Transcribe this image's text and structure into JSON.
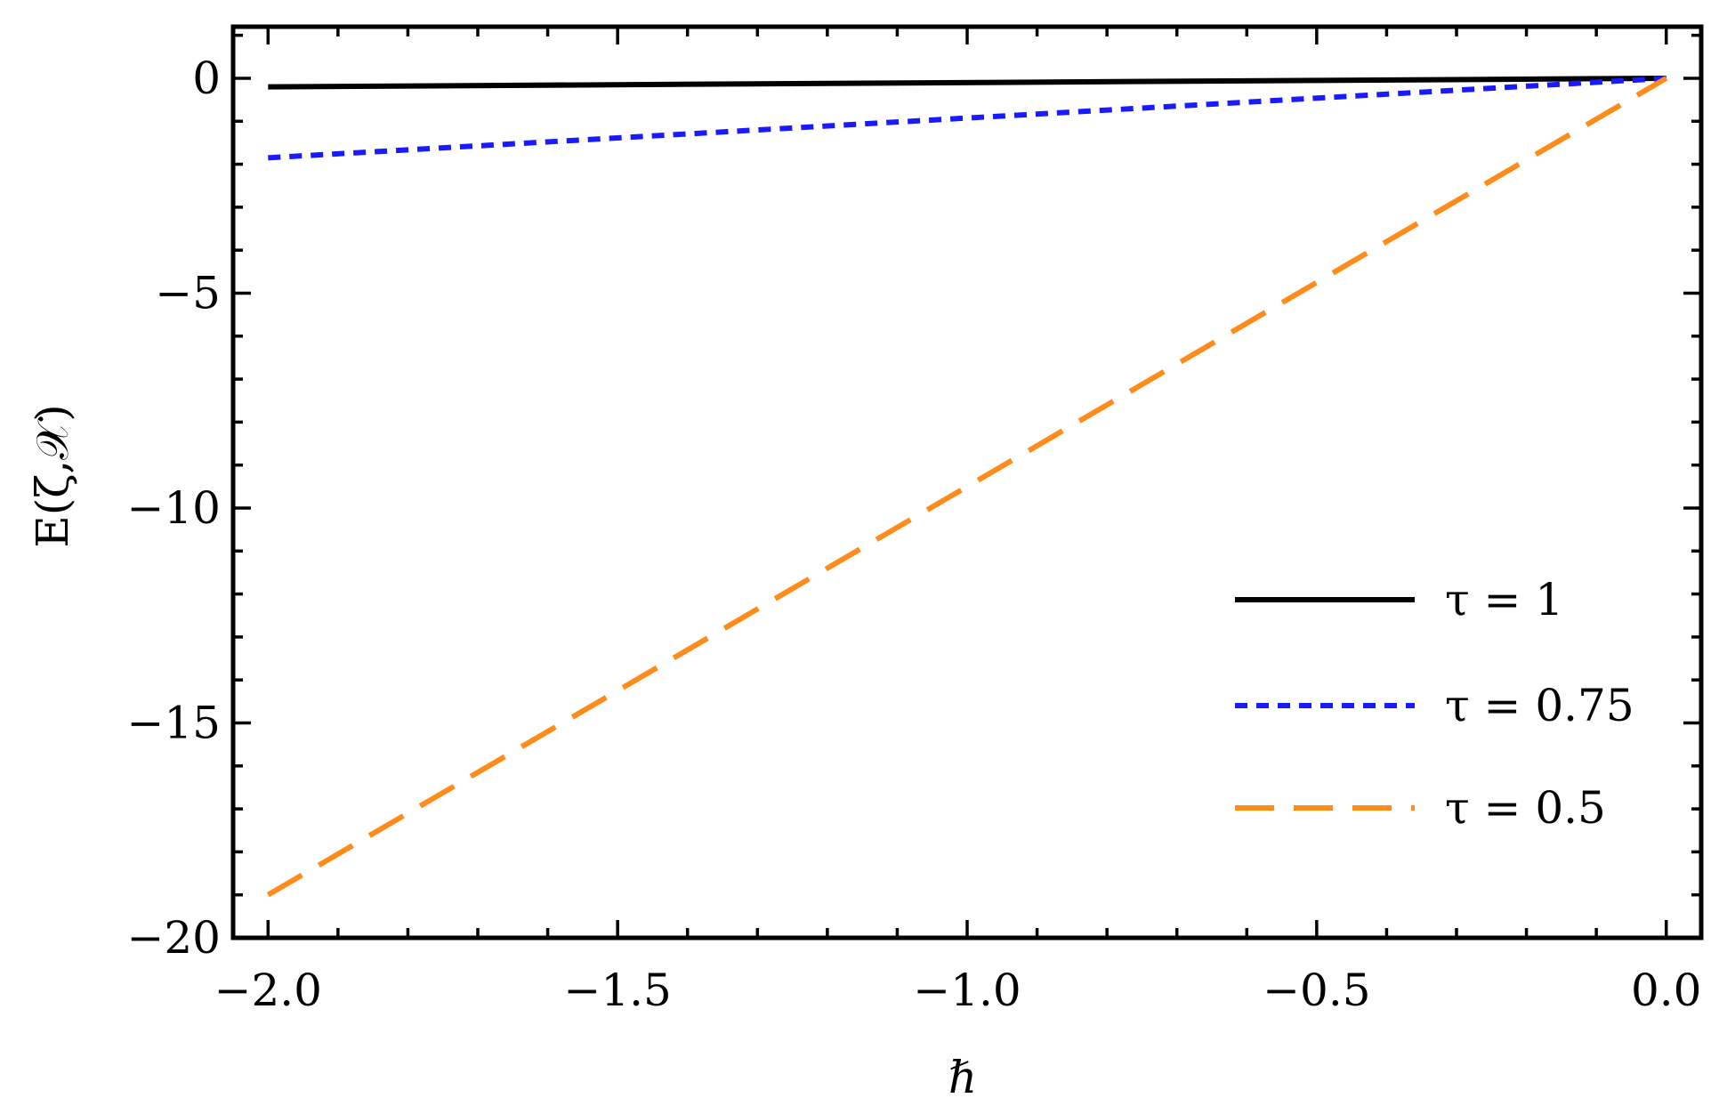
{
  "chart_data": {
    "type": "line",
    "xlabel": "ℏ",
    "ylabel": "E(ζ,𝒳)",
    "xlim": [
      -2.05,
      0.05
    ],
    "ylim": [
      -20,
      1.2
    ],
    "x_ticks": [
      -2.0,
      -1.5,
      -1.0,
      -0.5,
      0.0
    ],
    "x_tick_labels": [
      "−2.0",
      "−1.5",
      "−1.0",
      "−0.5",
      "0.0"
    ],
    "y_ticks": [
      0,
      -5,
      -10,
      -15,
      -20
    ],
    "y_tick_labels": [
      "0",
      "−5",
      "−10",
      "−15",
      "−20"
    ],
    "grid": false,
    "legend_position": "right",
    "series": [
      {
        "name": "τ = 1",
        "color": "#000000",
        "dash": "solid",
        "x": [
          -2.0,
          0.0
        ],
        "y": [
          -0.2,
          0.0
        ]
      },
      {
        "name": "τ = 0.75",
        "color": "#1a1aff",
        "dash": "short-dash",
        "x": [
          -2.0,
          0.0
        ],
        "y": [
          -1.85,
          0.0
        ]
      },
      {
        "name": "τ = 0.5",
        "color": "#ff8c1a",
        "dash": "long-dash",
        "x": [
          -2.0,
          0.0
        ],
        "y": [
          -19.0,
          0.0
        ]
      }
    ]
  }
}
